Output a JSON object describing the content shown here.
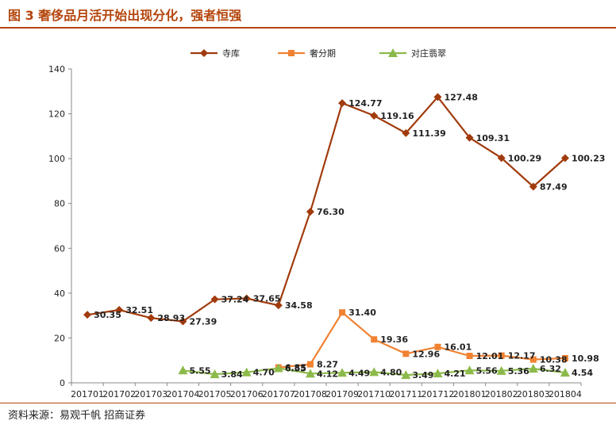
{
  "header": {
    "title": "图 3  奢侈品月活开始出现分化，强者恒强"
  },
  "footer": {
    "source": "资料来源：易观千帆  招商证券"
  },
  "colors": {
    "accent": "#b4450c",
    "series1": "#a13b0c",
    "series2": "#f08232",
    "series3": "#8cba4a"
  },
  "chart_data": {
    "type": "line",
    "title": "",
    "xlabel": "",
    "ylabel": "",
    "ylim": [
      0,
      140
    ],
    "yticks": [
      "0",
      "20",
      "40",
      "60",
      "80",
      "100",
      "120",
      "140"
    ],
    "grid": false,
    "legend_position": "top",
    "categories": [
      "201701",
      "201702",
      "201703",
      "201704",
      "201705",
      "201706",
      "201707",
      "201708",
      "201709",
      "201710",
      "201711",
      "201712",
      "201801",
      "201802",
      "201803",
      "201804"
    ],
    "series": [
      {
        "name": "寺库",
        "marker": "diamond",
        "color": "#a13b0c",
        "values": [
          30.35,
          32.51,
          28.93,
          27.39,
          37.24,
          37.65,
          34.58,
          76.3,
          124.77,
          119.16,
          111.39,
          127.48,
          109.31,
          100.29,
          87.49,
          100.23
        ],
        "labels": [
          "30.35",
          "32.51",
          "28.93",
          "27.39",
          "37.24",
          "37.65",
          "34.58",
          "76.30",
          "124.77",
          "119.16",
          "111.39",
          "127.48",
          "109.31",
          "100.29",
          "87.49",
          "100.23"
        ]
      },
      {
        "name": "奢分期",
        "marker": "square",
        "color": "#f08232",
        "values": [
          null,
          null,
          null,
          null,
          null,
          null,
          6.85,
          8.27,
          31.4,
          19.36,
          12.96,
          16.01,
          12.01,
          12.17,
          10.38,
          10.98
        ],
        "labels": [
          null,
          null,
          null,
          null,
          null,
          null,
          "6.85",
          "8.27",
          "31.40",
          "19.36",
          "12.96",
          "16.01",
          "12.01",
          "12.17",
          "10.38",
          "10.98"
        ]
      },
      {
        "name": "对庄翡翠",
        "marker": "triangle",
        "color": "#8cba4a",
        "values": [
          null,
          null,
          null,
          5.55,
          3.84,
          4.7,
          6.55,
          4.12,
          4.49,
          4.8,
          3.49,
          4.21,
          5.56,
          5.36,
          6.32,
          4.54
        ],
        "labels": [
          null,
          null,
          null,
          "5.55",
          "3.84",
          "4.70",
          "6.55",
          "4.12",
          "4.49",
          "4.80",
          "3.49",
          "4.21",
          "5.56",
          "5.36",
          "6.32",
          "4.54"
        ]
      }
    ]
  }
}
